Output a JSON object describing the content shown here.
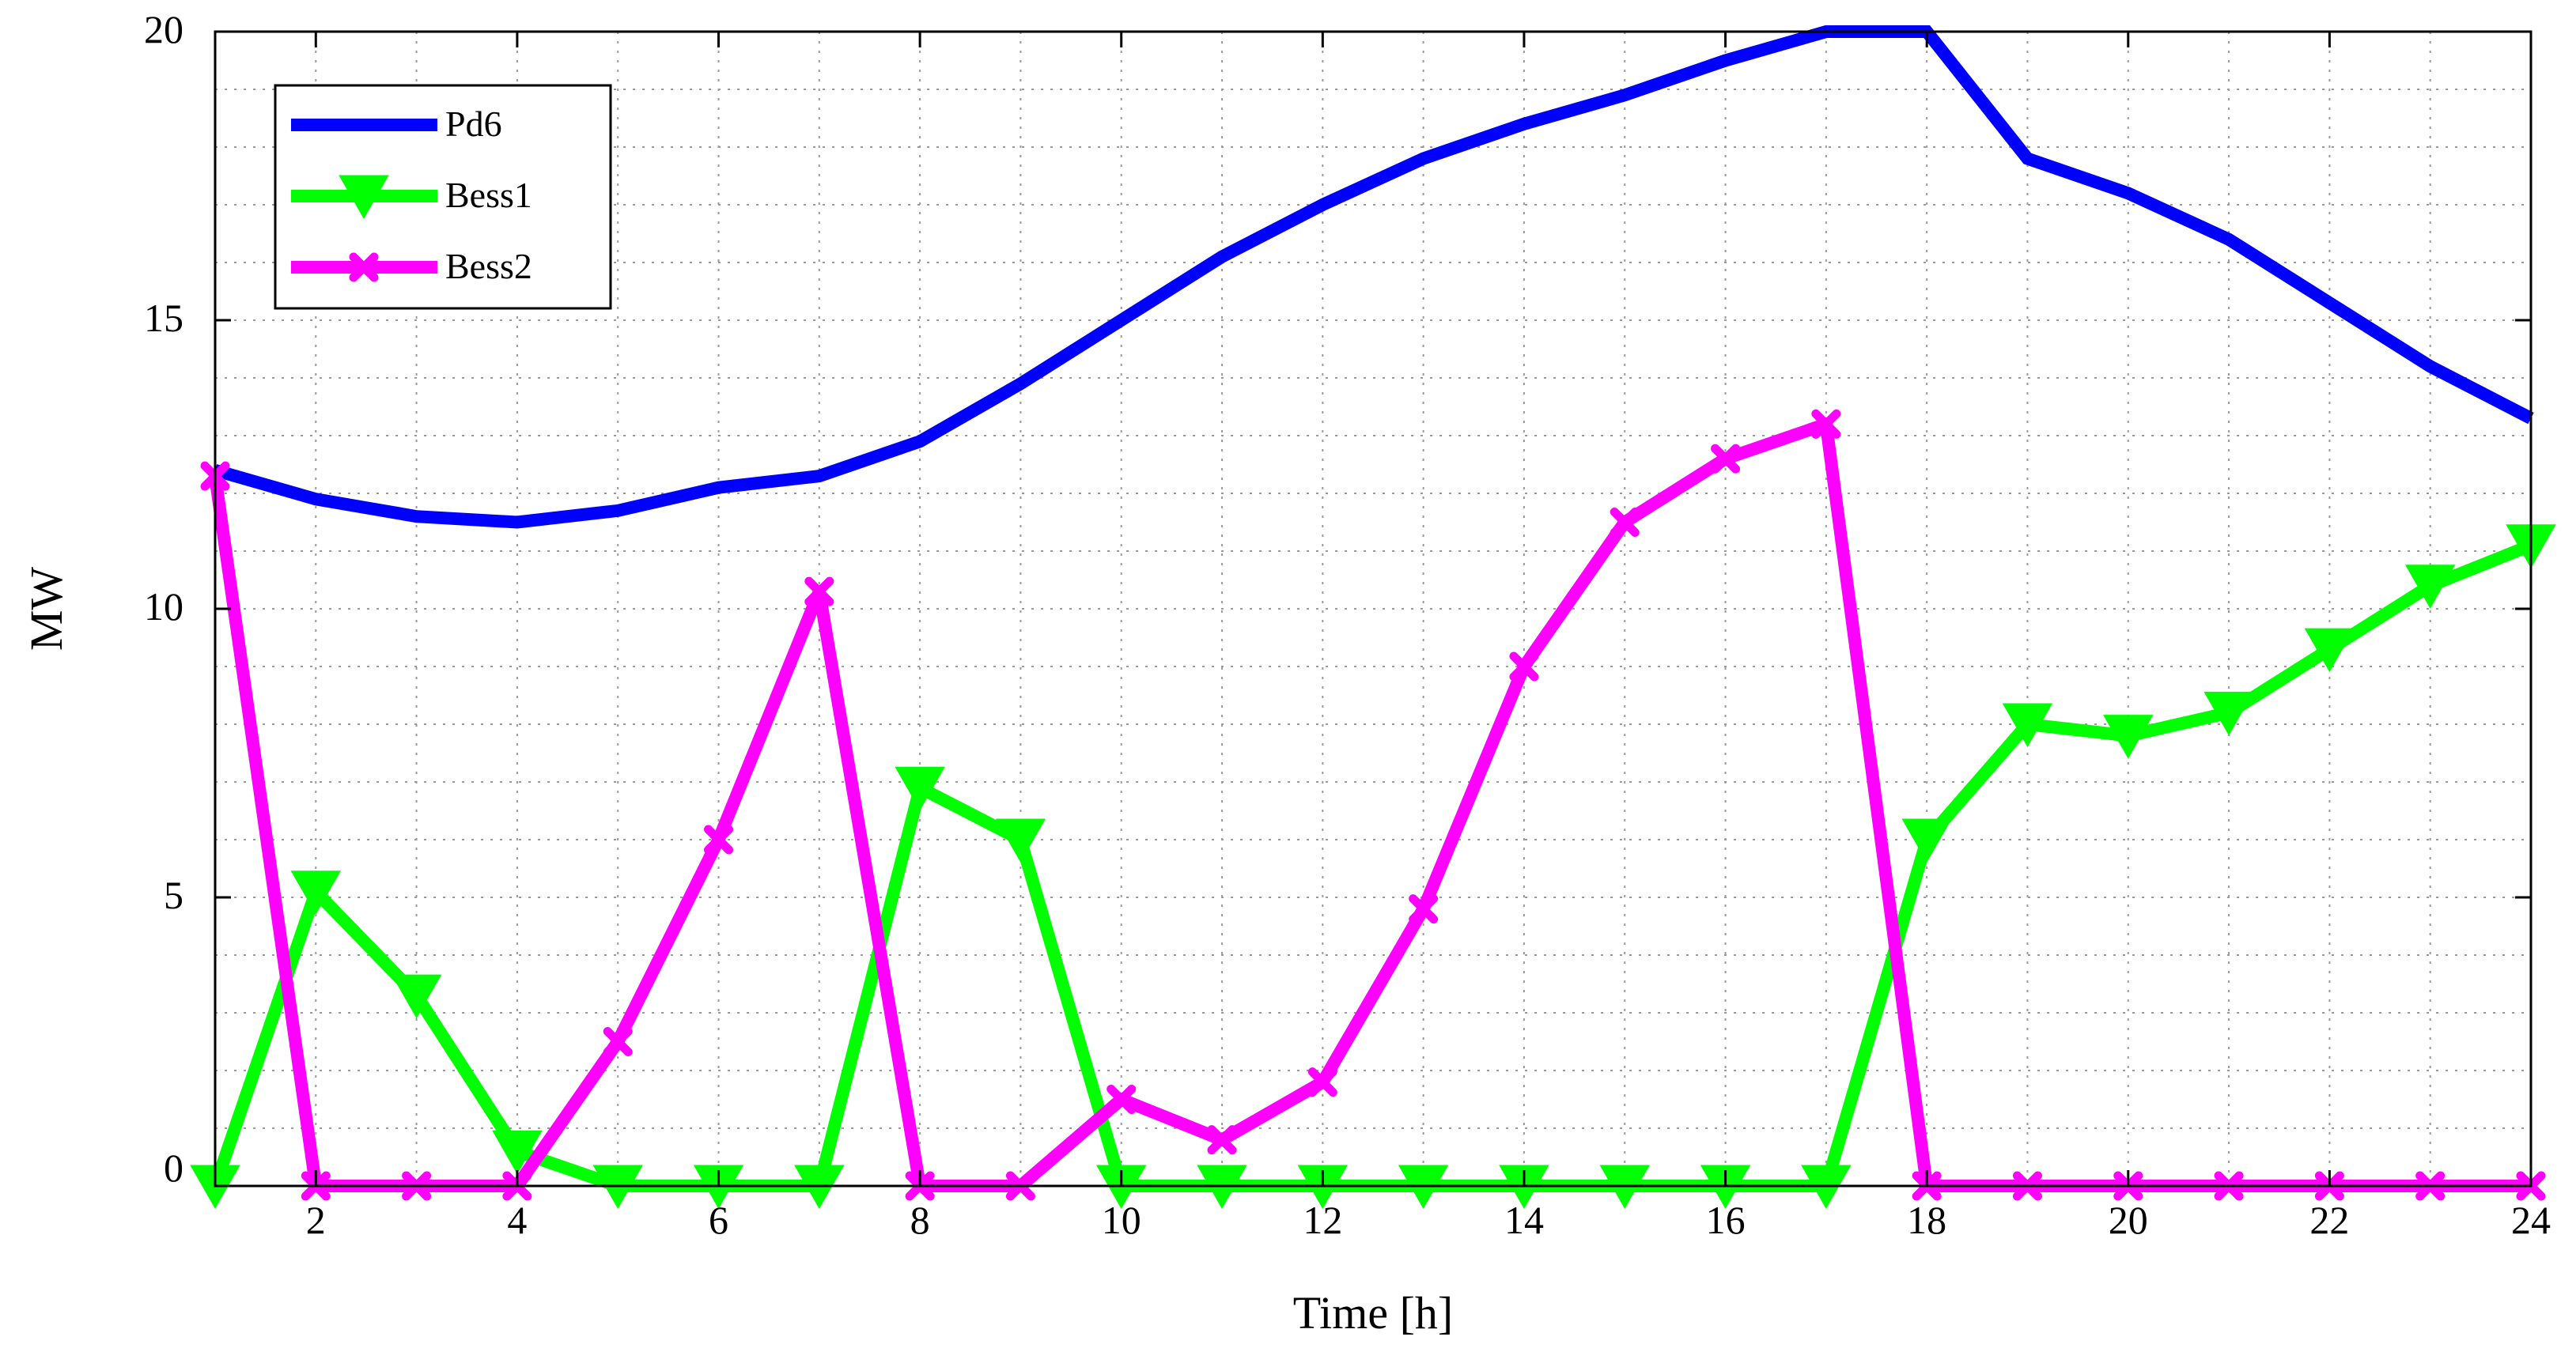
{
  "chart_data": {
    "type": "line",
    "xlabel": "Time [h]",
    "ylabel": "MW",
    "xlim": [
      1,
      24
    ],
    "ylim": [
      0,
      20
    ],
    "x_ticks": [
      2,
      4,
      6,
      8,
      10,
      12,
      14,
      16,
      18,
      20,
      22,
      24
    ],
    "y_ticks": [
      0,
      5,
      10,
      15,
      20
    ],
    "grid": true,
    "grid_style": "dotted",
    "legend_position": "top-left",
    "x": [
      1,
      2,
      3,
      4,
      5,
      6,
      7,
      8,
      9,
      10,
      11,
      12,
      13,
      14,
      15,
      16,
      17,
      18,
      19,
      20,
      21,
      22,
      23,
      24
    ],
    "series": [
      {
        "name": "Pd6",
        "color": "#0000ff",
        "marker": "none",
        "values": [
          12.4,
          11.9,
          11.6,
          11.5,
          11.7,
          12.1,
          12.3,
          12.9,
          13.9,
          15.0,
          16.1,
          17.0,
          17.8,
          18.4,
          18.9,
          19.5,
          20.0,
          20.0,
          17.8,
          17.2,
          16.4,
          15.3,
          14.2,
          13.3
        ]
      },
      {
        "name": "Bess1",
        "color": "#00ff00",
        "marker": "triangle-down",
        "values": [
          0.0,
          5.1,
          3.3,
          0.6,
          0.0,
          0.0,
          0.0,
          6.9,
          6.0,
          0.0,
          0.0,
          0.0,
          0.0,
          0.0,
          0.0,
          0.0,
          0.0,
          6.0,
          8.0,
          7.8,
          8.2,
          9.3,
          10.4,
          11.1
        ]
      },
      {
        "name": "Bess2",
        "color": "#ff00ff",
        "marker": "x-cross",
        "values": [
          12.3,
          0.0,
          0.0,
          0.0,
          2.5,
          6.0,
          10.3,
          0.0,
          0.0,
          1.5,
          0.8,
          1.8,
          4.8,
          9.0,
          11.5,
          12.6,
          13.2,
          0.0,
          0.0,
          0.0,
          0.0,
          0.0,
          0.0,
          0.0
        ]
      }
    ]
  }
}
